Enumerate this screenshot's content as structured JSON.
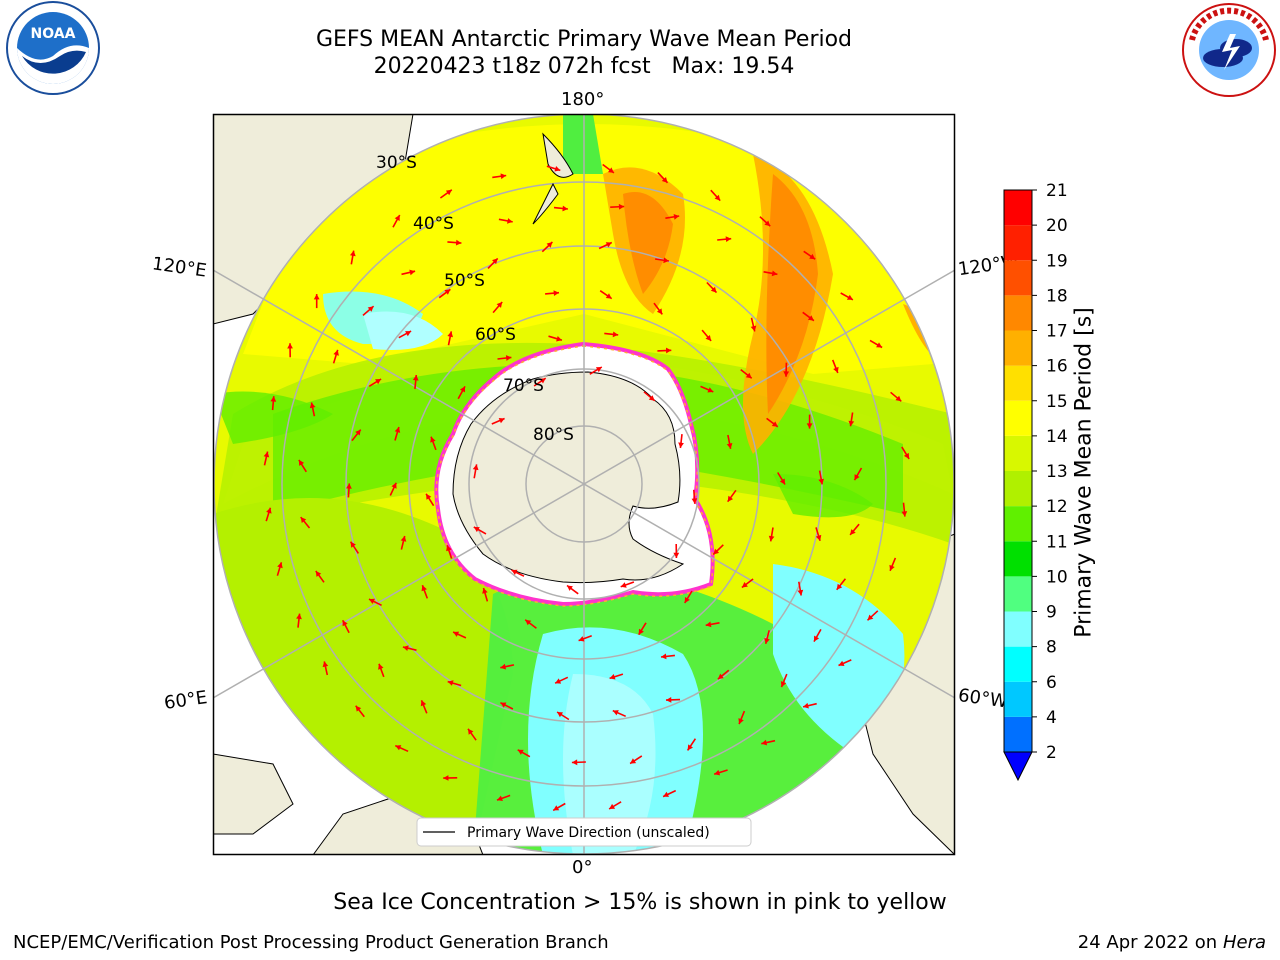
{
  "header": {
    "title_line1": "GEFS MEAN Antarctic Primary Wave Mean Period",
    "title_line2": "20220423 t18z 072h fcst   Max: 19.54"
  },
  "logos": {
    "left": {
      "name": "NOAA",
      "ring_text": "NATIONAL OCEANIC AND ATMOSPHERIC ADMINISTRATION",
      "bottom_text": "U.S. DEPARTMENT OF COMMERCE"
    },
    "right": {
      "ring_text": "NATIONAL WEATHER SERVICE"
    }
  },
  "map": {
    "lon_labels": {
      "top": "180°",
      "bottom": "0°",
      "upper_left": "120°E",
      "upper_right": "120°W",
      "lower_left": "60°E",
      "lower_right": "60°W"
    },
    "lat_labels": [
      "30°S",
      "40°S",
      "50°S",
      "60°S",
      "70°S",
      "80°S"
    ],
    "legend_label": "Primary Wave Direction (unscaled)",
    "colors": {
      "land": "#efedda",
      "ice": "#ffffff",
      "arrow": "#ff0000",
      "sea_ice_edge": "#ff33cc"
    }
  },
  "colorbar": {
    "label": "Primary Wave Mean Period [s]",
    "ticks": [
      "2",
      "4",
      "6",
      "8",
      "9",
      "10",
      "11",
      "12",
      "13",
      "14",
      "15",
      "16",
      "17",
      "18",
      "19",
      "20",
      "21"
    ],
    "colors": [
      "#0070ff",
      "#00c8ff",
      "#00ffff",
      "#80ffff",
      "#50ff80",
      "#00e000",
      "#60f000",
      "#b0f000",
      "#d8f800",
      "#ffff00",
      "#ffe000",
      "#ffb000",
      "#ff8800",
      "#ff5000",
      "#ff2000",
      "#ff0000"
    ],
    "extend_color": "#0000ff"
  },
  "caption": "Sea Ice Concentration > 15% is shown in pink to yellow",
  "footer": {
    "left": "NCEP/EMC/Verification Post Processing Product Generation Branch",
    "right_date": "24 Apr 2022 on ",
    "right_machine": "Hera"
  }
}
